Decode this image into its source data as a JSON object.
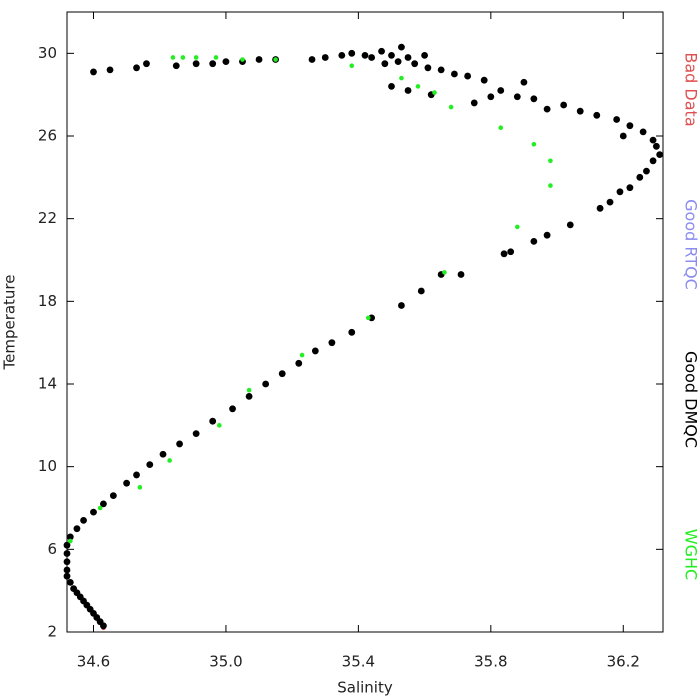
{
  "chart_data": {
    "type": "scatter",
    "x_label": "Salinity",
    "y_label": "Temperature",
    "xlim": [
      34.52,
      36.32
    ],
    "ylim": [
      2,
      32
    ],
    "xticks": [
      {
        "value": 34.6,
        "label": "34.6"
      },
      {
        "value": 35.0,
        "label": "35.0"
      },
      {
        "value": 35.4,
        "label": "35.4"
      },
      {
        "value": 35.8,
        "label": "35.8"
      },
      {
        "value": 36.2,
        "label": "36.2"
      }
    ],
    "yticks": [
      2,
      6,
      10,
      14,
      18,
      22,
      26,
      30
    ],
    "series": [
      {
        "name": "Bad Data",
        "color": "#e05050",
        "x": [
          34.63
        ],
        "values": [
          2.2
        ]
      },
      {
        "name": "Good RTQC",
        "color": "#8c8cf0",
        "x": [],
        "values": []
      },
      {
        "name": "Good DMQC",
        "color": "#000000",
        "x": [
          34.63,
          34.62,
          34.61,
          34.6,
          34.59,
          34.58,
          34.57,
          34.56,
          34.55,
          34.54,
          34.53,
          34.52,
          34.52,
          34.52,
          34.52,
          34.52,
          34.53,
          34.55,
          34.57,
          34.6,
          34.63,
          34.66,
          34.7,
          34.73,
          34.77,
          34.81,
          34.86,
          34.91,
          34.96,
          35.02,
          35.07,
          35.12,
          35.17,
          35.22,
          35.27,
          35.32,
          35.38,
          35.44,
          35.53,
          35.59,
          35.65,
          35.71,
          35.84,
          35.86,
          35.93,
          35.97,
          36.04,
          36.13,
          36.16,
          36.19,
          36.22,
          36.25,
          36.27,
          36.29,
          36.31,
          36.3,
          36.29,
          36.26,
          36.22,
          36.18,
          36.12,
          36.07,
          36.02,
          35.97,
          35.93,
          35.88,
          35.83,
          35.78,
          35.73,
          35.69,
          35.65,
          35.61,
          35.57,
          35.55,
          35.52,
          35.5,
          35.47,
          35.44,
          35.42,
          35.38,
          35.35,
          35.3,
          35.26,
          35.15,
          35.1,
          35.05,
          35.0,
          34.96,
          34.91,
          34.85,
          34.76,
          34.73,
          34.65,
          34.6,
          35.5,
          35.55,
          35.62,
          35.75,
          35.8,
          35.9,
          35.6,
          35.53,
          35.48,
          36.2
        ],
        "values": [
          2.3,
          2.5,
          2.7,
          2.9,
          3.1,
          3.3,
          3.5,
          3.7,
          3.9,
          4.1,
          4.4,
          4.7,
          5.0,
          5.4,
          5.8,
          6.2,
          6.6,
          7.0,
          7.4,
          7.8,
          8.2,
          8.6,
          9.2,
          9.6,
          10.1,
          10.6,
          11.1,
          11.6,
          12.2,
          12.8,
          13.4,
          14.0,
          14.5,
          15.0,
          15.6,
          16.0,
          16.5,
          17.2,
          17.8,
          18.5,
          19.3,
          19.3,
          20.3,
          20.4,
          20.9,
          21.2,
          21.7,
          22.5,
          22.8,
          23.3,
          23.5,
          24.0,
          24.3,
          24.8,
          25.1,
          25.5,
          25.8,
          26.2,
          26.5,
          26.8,
          27.0,
          27.2,
          27.5,
          27.3,
          27.8,
          27.9,
          28.2,
          28.7,
          28.9,
          29.0,
          29.2,
          29.3,
          29.5,
          29.8,
          29.6,
          29.9,
          30.1,
          29.8,
          29.9,
          30.0,
          29.9,
          29.8,
          29.7,
          29.7,
          29.7,
          29.6,
          29.6,
          29.5,
          29.5,
          29.4,
          29.5,
          29.3,
          29.2,
          29.1,
          28.4,
          28.2,
          28.0,
          27.6,
          27.9,
          28.6,
          29.9,
          30.3,
          29.5,
          26.0
        ]
      },
      {
        "name": "WGHC",
        "color": "#22ee22",
        "x": [
          34.53,
          34.62,
          34.74,
          34.83,
          34.98,
          35.07,
          35.23,
          35.43,
          35.66,
          35.88,
          35.98,
          35.98,
          35.93,
          35.83,
          35.68,
          35.63,
          35.58,
          35.53,
          35.38,
          35.15,
          35.05,
          34.97,
          34.91,
          34.87,
          34.84
        ],
        "values": [
          6.4,
          8.0,
          9.0,
          10.3,
          12.0,
          13.7,
          15.4,
          17.2,
          19.4,
          21.6,
          23.6,
          24.8,
          25.6,
          26.4,
          27.4,
          28.1,
          28.4,
          28.8,
          29.4,
          29.7,
          29.7,
          29.8,
          29.8,
          29.8,
          29.8
        ]
      }
    ]
  }
}
